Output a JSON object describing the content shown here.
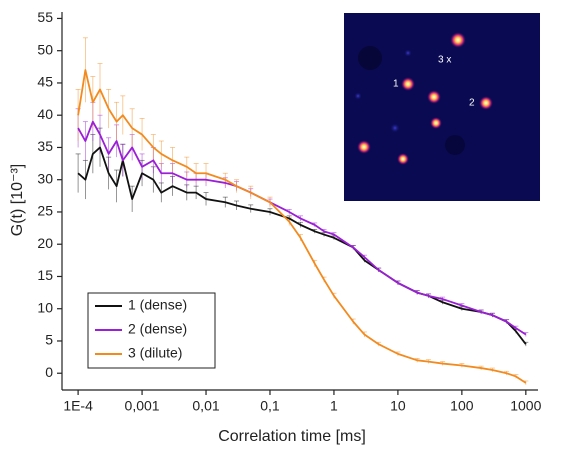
{
  "chart_data": {
    "type": "line",
    "xlabel": "Correlation time [ms]",
    "ylabel": "G(t) [10⁻³]",
    "xscale": "log",
    "xlim": [
      5.6e-05,
      1550
    ],
    "ylim": [
      -2.6,
      56
    ],
    "xticks": [
      {
        "value": 0.0001,
        "label": "1E-4"
      },
      {
        "value": 0.001,
        "label": "0,001"
      },
      {
        "value": 0.01,
        "label": "0,01"
      },
      {
        "value": 0.1,
        "label": "0,1"
      },
      1,
      10,
      100,
      1000
    ],
    "yticks": [
      0,
      5,
      10,
      15,
      20,
      25,
      30,
      35,
      40,
      45,
      50,
      55
    ],
    "legend": "lower left",
    "x": [
      0.0001,
      0.00013,
      0.00017,
      0.00022,
      0.0003,
      0.0004,
      0.0005,
      0.0007,
      0.001,
      0.0015,
      0.002,
      0.003,
      0.005,
      0.007,
      0.01,
      0.02,
      0.03,
      0.05,
      0.1,
      0.2,
      0.3,
      0.5,
      0.7,
      1,
      2,
      3,
      5,
      10,
      20,
      30,
      50,
      100,
      200,
      300,
      500,
      700,
      1000
    ],
    "series": [
      {
        "name": "1 (dense)",
        "color": "#111111",
        "values": [
          31,
          30,
          34,
          35,
          31,
          29,
          33,
          27,
          31,
          30,
          28,
          29,
          28,
          28,
          27,
          26.5,
          26,
          25.5,
          25,
          24,
          23,
          22,
          21.5,
          21,
          19.5,
          17.5,
          16,
          14,
          12.5,
          12,
          11,
          10,
          9.5,
          9,
          8,
          6.5,
          4.5
        ],
        "errors": [
          3,
          3,
          3,
          3,
          2.5,
          2.5,
          2.5,
          2,
          2,
          2,
          1.5,
          1.5,
          1.2,
          1,
          1,
          0.8,
          0.7,
          0.6,
          0.5,
          0.4,
          0.4,
          0.3,
          0.3,
          0.3,
          0.3,
          0.3,
          0.3,
          0.3,
          0.3,
          0.3,
          0.3,
          0.3,
          0.3,
          0.3,
          0.3,
          0.3,
          0.3
        ]
      },
      {
        "name": "2 (dense)",
        "color": "#9b1fd6",
        "values": [
          38,
          36,
          39,
          37,
          34,
          36,
          33,
          35,
          32,
          33,
          31,
          31,
          30,
          30,
          30,
          29.5,
          29,
          28,
          26.5,
          25,
          24,
          23,
          22,
          21.5,
          19.5,
          18,
          16,
          14,
          12.5,
          12,
          11.5,
          10.5,
          9.5,
          9,
          8,
          7,
          6
        ],
        "errors": [
          3,
          3,
          3,
          3,
          2.5,
          2.5,
          2.5,
          2,
          2,
          2,
          1.5,
          1.5,
          1.2,
          1,
          1,
          0.8,
          0.7,
          0.6,
          0.5,
          0.4,
          0.4,
          0.3,
          0.3,
          0.3,
          0.3,
          0.3,
          0.3,
          0.3,
          0.3,
          0.3,
          0.3,
          0.3,
          0.3,
          0.3,
          0.3,
          0.3,
          0.3
        ]
      },
      {
        "name": "3 (dilute)",
        "color": "#f28a1e",
        "values": [
          40,
          47,
          42,
          44,
          41,
          39,
          40,
          38,
          37,
          35,
          34,
          33,
          32,
          31,
          31,
          30,
          29,
          28,
          26.5,
          23.5,
          21,
          17,
          14.5,
          12,
          8,
          6,
          4.5,
          3,
          2,
          1.8,
          1.5,
          1.2,
          0.8,
          0.5,
          0,
          -0.5,
          -1.5
        ],
        "errors": [
          4,
          5,
          4,
          4,
          3,
          3,
          3,
          3,
          2.5,
          2,
          2,
          2,
          1.5,
          1.5,
          1.5,
          1,
          1,
          1,
          0.8,
          0.6,
          0.5,
          0.5,
          0.4,
          0.4,
          0.4,
          0.4,
          0.3,
          0.3,
          0.3,
          0.3,
          0.3,
          0.3,
          0.3,
          0.3,
          0.3,
          0.3,
          0.3
        ]
      }
    ],
    "inset": {
      "labels": [
        "1",
        "2",
        "3 x"
      ]
    }
  }
}
